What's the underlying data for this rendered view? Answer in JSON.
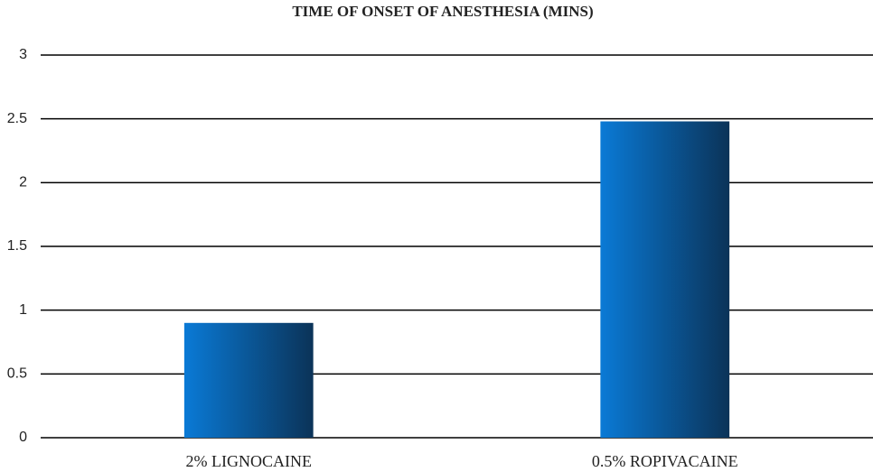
{
  "chart_data": {
    "type": "bar",
    "title": "TIME OF ONSET OF ANESTHESIA (MINS)",
    "categories": [
      "2% LIGNOCAINE",
      "0.5% ROPIVACAINE"
    ],
    "values": [
      0.9,
      2.48
    ],
    "color": "#0a7ad6",
    "ylim": [
      0,
      3
    ],
    "yticks": [
      0,
      0.5,
      1,
      1.5,
      2,
      2.5,
      3
    ],
    "grid": true
  }
}
